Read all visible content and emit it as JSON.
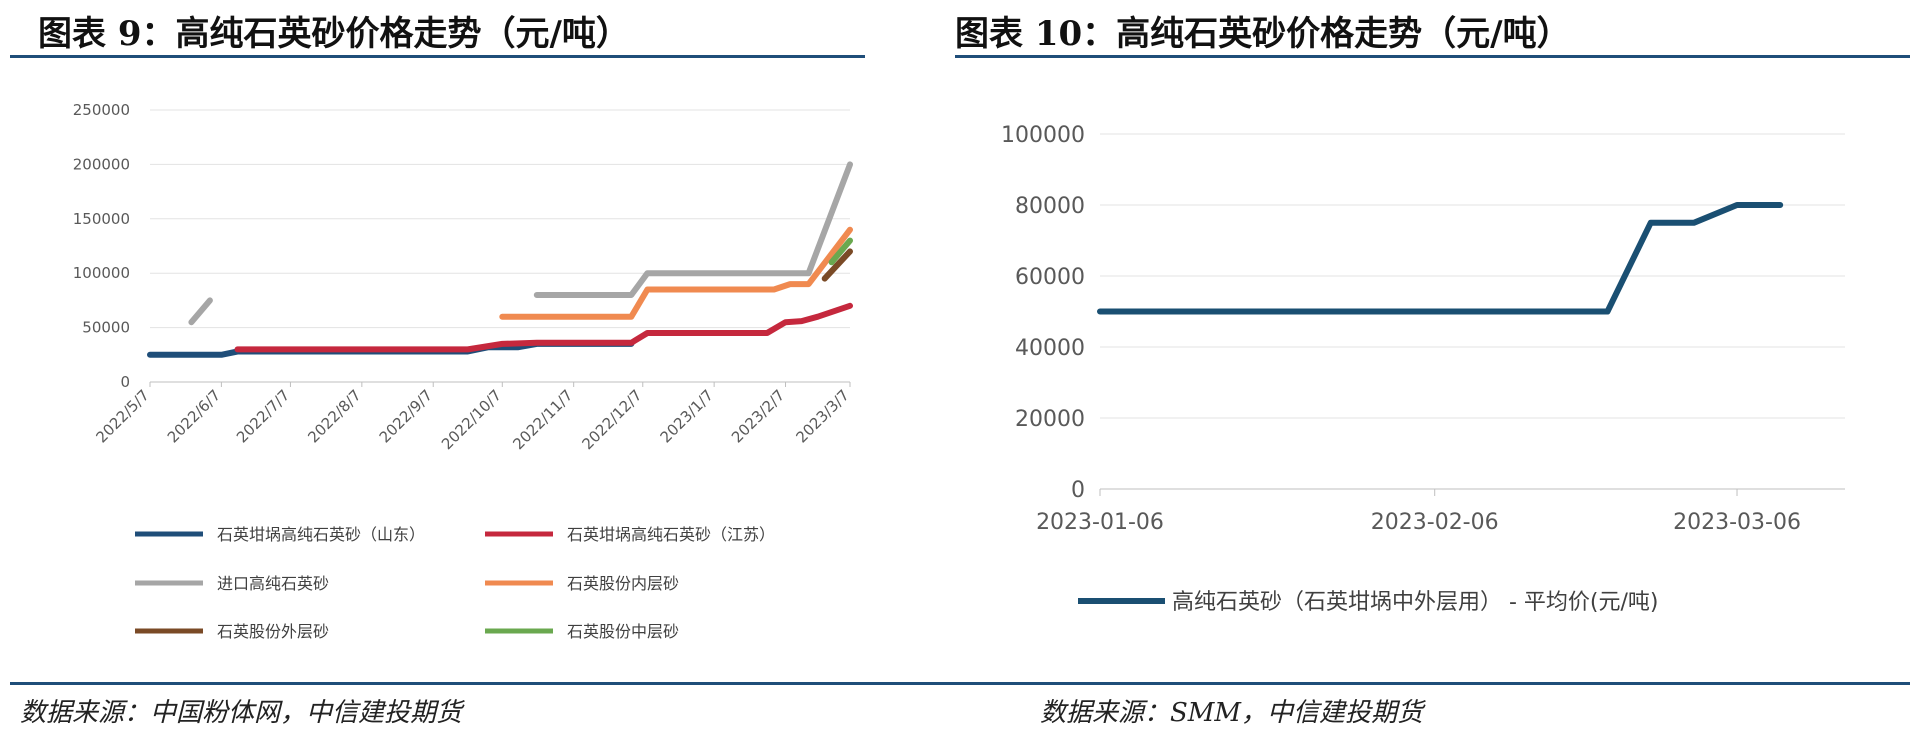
{
  "left_panel": {
    "title": "图表 9：高纯石英砂价格走势（元/吨）",
    "source": "数据来源：中国粉体网，中信建投期货"
  },
  "right_panel": {
    "title": "图表 10：高纯石英砂价格走势（元/吨）",
    "source": "数据来源：SMM，中信建投期货"
  },
  "chart_data": [
    {
      "type": "line",
      "title": "",
      "xlabel": "",
      "ylabel": "",
      "ylim": [
        0,
        250000
      ],
      "yticks": [
        0,
        50000,
        100000,
        150000,
        200000,
        250000
      ],
      "x_range": [
        "2022-05-07",
        "2023-03-07"
      ],
      "x_ticks": [
        "2022/5/7",
        "2022/6/7",
        "2022/7/7",
        "2022/8/7",
        "2022/9/7",
        "2022/10/7",
        "2022/11/7",
        "2022/12/7",
        "2023/1/7",
        "2023/2/7",
        "2023/3/7"
      ],
      "grid": true,
      "legend_position": "bottom",
      "series": [
        {
          "name": "石英坩埚高纯石英砂（山东）",
          "color": "#1f4e79",
          "points": [
            [
              "2022-05-07",
              25000
            ],
            [
              "2022-06-07",
              25000
            ],
            [
              "2022-06-14",
              28000
            ],
            [
              "2022-09-22",
              28000
            ],
            [
              "2022-10-01",
              32000
            ],
            [
              "2022-10-14",
              32000
            ],
            [
              "2022-10-22",
              35000
            ],
            [
              "2022-12-02",
              35000
            ]
          ]
        },
        {
          "name": "石英坩埚高纯石英砂（江苏）",
          "color": "#c5283d",
          "points": [
            [
              "2022-06-14",
              30000
            ],
            [
              "2022-09-22",
              30000
            ],
            [
              "2022-10-07",
              35000
            ],
            [
              "2022-10-22",
              36000
            ],
            [
              "2022-12-02",
              36000
            ],
            [
              "2022-12-09",
              45000
            ],
            [
              "2023-01-30",
              45000
            ],
            [
              "2023-02-07",
              55000
            ],
            [
              "2023-02-14",
              56000
            ],
            [
              "2023-02-21",
              60000
            ],
            [
              "2023-03-07",
              70000
            ]
          ]
        },
        {
          "name": "进口高纯石英砂",
          "color": "#a6a6a6",
          "points": [
            [
              "2022-05-25",
              55000
            ],
            [
              "2022-06-02",
              75000
            ],
            null,
            [
              "2022-10-22",
              80000
            ],
            [
              "2022-12-02",
              80000
            ],
            [
              "2022-12-09",
              100000
            ],
            [
              "2023-02-17",
              100000
            ],
            [
              "2023-03-07",
              200000
            ]
          ]
        },
        {
          "name": "石英股份内层砂",
          "color": "#f08a50",
          "points": [
            [
              "2022-10-07",
              60000
            ],
            [
              "2022-12-02",
              60000
            ],
            [
              "2022-12-09",
              85000
            ],
            [
              "2023-02-02",
              85000
            ],
            [
              "2023-02-09",
              90000
            ],
            [
              "2023-02-17",
              90000
            ],
            [
              "2023-03-07",
              140000
            ]
          ]
        },
        {
          "name": "石英股份外层砂",
          "color": "#7a4a26",
          "points": [
            [
              "2023-02-24",
              95000
            ],
            [
              "2023-03-07",
              120000
            ]
          ]
        },
        {
          "name": "石英股份中层砂",
          "color": "#6aa84f",
          "points": [
            [
              "2023-02-27",
              110000
            ],
            [
              "2023-03-07",
              130000
            ]
          ]
        }
      ]
    },
    {
      "type": "line",
      "title": "",
      "xlabel": "",
      "ylabel": "",
      "ylim": [
        0,
        100000
      ],
      "yticks": [
        0,
        20000,
        40000,
        60000,
        80000,
        100000
      ],
      "x_range": [
        "2023-01-06",
        "2023-03-16"
      ],
      "x_ticks": [
        "2023-01-06",
        "2023-02-06",
        "2023-03-06"
      ],
      "grid": true,
      "legend_position": "bottom",
      "series": [
        {
          "name": "高纯石英砂（石英坩埚中外层用） - 平均价(元/吨)",
          "color": "#1a4f72",
          "points": [
            [
              "2023-01-06",
              50000
            ],
            [
              "2023-02-22",
              50000
            ],
            [
              "2023-02-26",
              75000
            ],
            [
              "2023-03-02",
              75000
            ],
            [
              "2023-03-06",
              80000
            ],
            [
              "2023-03-10",
              80000
            ]
          ]
        }
      ]
    }
  ]
}
